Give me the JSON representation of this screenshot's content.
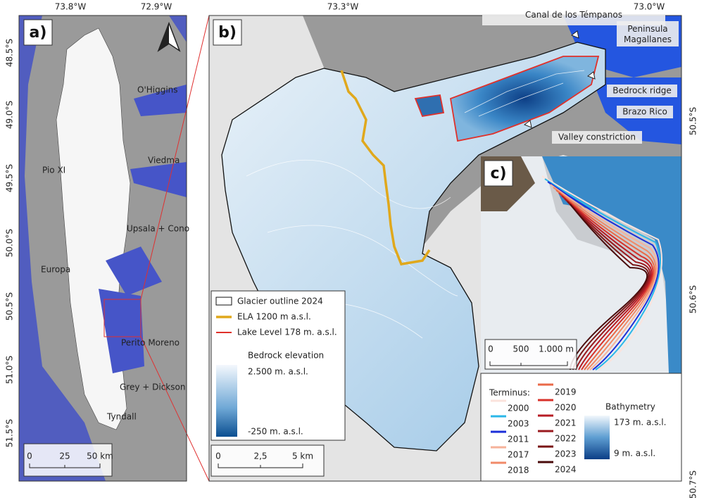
{
  "panel_a": {
    "label": "a)",
    "lon_ticks": [
      "73.8°W",
      "72.9°W"
    ],
    "lat_ticks": [
      "48.5°S",
      "49.0°S",
      "49.5°S",
      "50.0°S",
      "50.5°S",
      "51.0°S",
      "51.5°S"
    ],
    "glaciers": [
      "O'Higgins",
      "Viedma",
      "Pio XI",
      "Upsala + Cono",
      "Europa",
      "Perito Moreno",
      "Grey + Dickson",
      "Tyndall"
    ],
    "scale": [
      "0",
      "25",
      "50 km"
    ]
  },
  "panel_b": {
    "label": "b)",
    "lon_ticks": [
      "73.3°W",
      "73.0°W"
    ],
    "lat_ticks": [
      "50.5°S",
      "50.6°S",
      "50.7°S"
    ],
    "annotations": [
      "Canal de los Témpanos",
      "Peninsula Magallanes",
      "Bedrock ridge",
      "Brazo Rico",
      "Valley constriction"
    ],
    "legend": {
      "outline": "Glacier outline 2024",
      "ela": "ELA 1200 m a.s.l.",
      "lake": "Lake Level 178 m. a.s.l.",
      "bedrock_title": "Bedrock elevation",
      "bedrock_max": "2.500 m. a.s.l.",
      "bedrock_min": "-250 m. a.s.l."
    },
    "scale": [
      "0",
      "2,5",
      "5 km"
    ]
  },
  "panel_c": {
    "label": "c)",
    "scale": [
      "0",
      "500",
      "1.000 m"
    ],
    "terminus_title": "Terminus:",
    "terminus": [
      {
        "year": "2000",
        "color": "#fbe3dc"
      },
      {
        "year": "2003",
        "color": "#2bb7e8"
      },
      {
        "year": "2011",
        "color": "#1b2fd8"
      },
      {
        "year": "2017",
        "color": "#f6b29a"
      },
      {
        "year": "2018",
        "color": "#f08a68"
      },
      {
        "year": "2019",
        "color": "#ea6a48"
      },
      {
        "year": "2020",
        "color": "#d8322a"
      },
      {
        "year": "2021",
        "color": "#b71c24"
      },
      {
        "year": "2022",
        "color": "#9a1a1e"
      },
      {
        "year": "2023",
        "color": "#7a1414"
      },
      {
        "year": "2024",
        "color": "#4a0b0b"
      }
    ],
    "bathymetry_title": "Bathymetry",
    "bathymetry_max": "173 m. a.s.l.",
    "bathymetry_min": "9 m. a.s.l."
  }
}
